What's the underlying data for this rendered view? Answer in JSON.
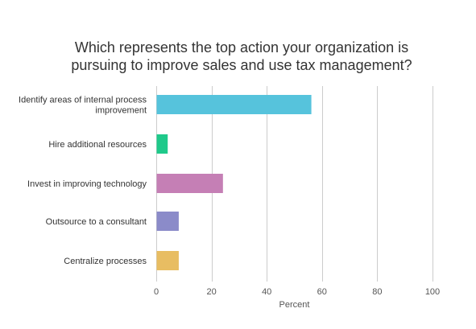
{
  "chart_data": {
    "type": "bar",
    "orientation": "horizontal",
    "title_lines": [
      "Which represents the top action your organization is",
      "pursuing to improve sales and use tax management?"
    ],
    "categories": [
      [
        "Identify areas of internal process",
        "improvement"
      ],
      [
        "Hire additional resources"
      ],
      [
        "Invest in improving technology"
      ],
      [
        "Outsource to a consultant"
      ],
      [
        "Centralize processes"
      ]
    ],
    "values": [
      56,
      4,
      24,
      8,
      8
    ],
    "colors": [
      "#56c3dc",
      "#1fc98a",
      "#c57fb5",
      "#8b8bc9",
      "#e8bd62"
    ],
    "xlabel": "Percent",
    "xlim": [
      0,
      100
    ],
    "ticks": [
      0,
      20,
      40,
      60,
      80,
      100
    ],
    "grid": true,
    "grid_color": "#cccccc",
    "legend": "none"
  }
}
